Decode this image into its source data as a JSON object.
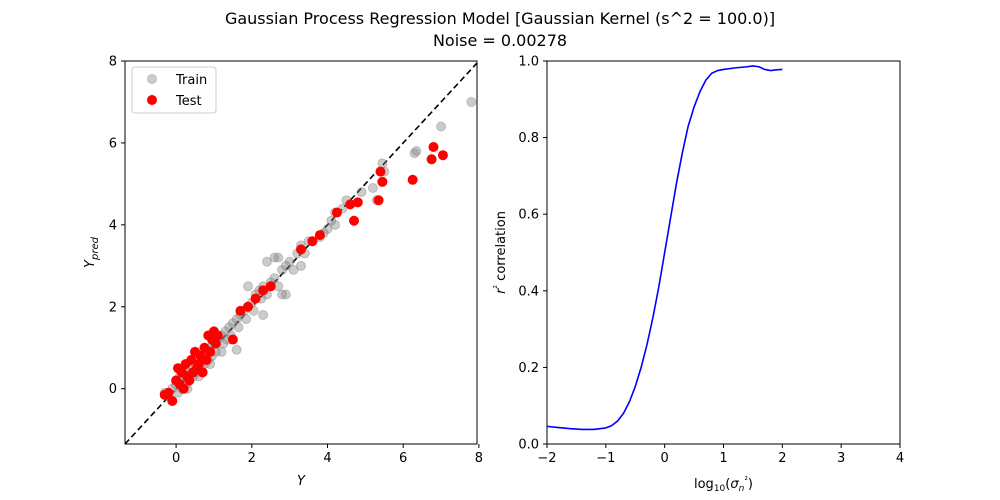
{
  "figure": {
    "title_line1": "Gaussian Process Regression Model [Gaussian Kernel (s^2 = 100.0)]",
    "title_line2": "Noise = 0.00278"
  },
  "chart_data": [
    {
      "type": "scatter",
      "xlabel": "Y",
      "ylabel": "Y_pred",
      "xlim": [
        -1.35,
        7.95
      ],
      "ylim": [
        -1.35,
        8.0
      ],
      "xticks": [
        "0",
        "2",
        "4",
        "6",
        "8"
      ],
      "yticks": [
        "0",
        "2",
        "4",
        "6",
        "8"
      ],
      "legend": {
        "position": "top-left",
        "entries": [
          "Train",
          "Test"
        ]
      },
      "reference_line": {
        "style": "dashed",
        "color": "#000000",
        "from": [
          -1.35,
          -1.35
        ],
        "to": [
          8.0,
          8.0
        ]
      },
      "series": [
        {
          "name": "Train",
          "color": "#808080",
          "opacity": 0.4,
          "points": [
            [
              -0.3,
              -0.1
            ],
            [
              -0.2,
              -0.2
            ],
            [
              -0.1,
              0.0
            ],
            [
              0.0,
              0.1
            ],
            [
              0.05,
              -0.1
            ],
            [
              0.1,
              0.2
            ],
            [
              0.15,
              0.0
            ],
            [
              0.2,
              0.3
            ],
            [
              0.25,
              0.1
            ],
            [
              0.3,
              0.4
            ],
            [
              0.35,
              0.2
            ],
            [
              0.4,
              0.5
            ],
            [
              0.45,
              0.3
            ],
            [
              0.5,
              0.6
            ],
            [
              0.55,
              0.4
            ],
            [
              0.6,
              0.7
            ],
            [
              0.65,
              0.5
            ],
            [
              0.7,
              0.8
            ],
            [
              0.75,
              0.6
            ],
            [
              0.8,
              0.9
            ],
            [
              0.85,
              0.7
            ],
            [
              0.9,
              1.0
            ],
            [
              0.95,
              0.8
            ],
            [
              1.0,
              1.1
            ],
            [
              1.05,
              0.9
            ],
            [
              1.1,
              1.2
            ],
            [
              1.2,
              1.3
            ],
            [
              1.25,
              1.1
            ],
            [
              1.3,
              1.4
            ],
            [
              1.35,
              1.2
            ],
            [
              1.4,
              1.5
            ],
            [
              1.45,
              1.3
            ],
            [
              1.5,
              1.6
            ],
            [
              1.6,
              1.7
            ],
            [
              1.65,
              1.5
            ],
            [
              1.7,
              1.8
            ],
            [
              1.8,
              1.9
            ],
            [
              1.85,
              1.7
            ],
            [
              1.9,
              2.0
            ],
            [
              2.0,
              2.1
            ],
            [
              2.05,
              1.9
            ],
            [
              2.1,
              2.3
            ],
            [
              2.2,
              2.4
            ],
            [
              2.25,
              2.2
            ],
            [
              2.3,
              2.5
            ],
            [
              2.4,
              2.3
            ],
            [
              2.5,
              2.6
            ],
            [
              2.6,
              2.7
            ],
            [
              2.7,
              2.5
            ],
            [
              2.8,
              2.9
            ],
            [
              2.9,
              3.0
            ],
            [
              3.0,
              3.1
            ],
            [
              3.1,
              2.9
            ],
            [
              3.2,
              3.3
            ],
            [
              3.3,
              3.5
            ],
            [
              3.4,
              3.3
            ],
            [
              3.6,
              3.6
            ],
            [
              3.8,
              3.7
            ],
            [
              4.0,
              3.9
            ],
            [
              4.2,
              4.3
            ],
            [
              4.4,
              4.4
            ],
            [
              4.5,
              4.6
            ],
            [
              4.6,
              4.5
            ],
            [
              4.9,
              4.8
            ],
            [
              5.2,
              4.9
            ],
            [
              5.3,
              4.6
            ],
            [
              5.45,
              5.5
            ],
            [
              5.5,
              5.3
            ],
            [
              6.3,
              5.75
            ],
            [
              6.35,
              5.8
            ],
            [
              7.0,
              6.4
            ],
            [
              7.8,
              7.0
            ],
            [
              0.1,
              0.3
            ],
            [
              0.3,
              0.0
            ],
            [
              0.6,
              0.3
            ],
            [
              0.9,
              0.6
            ],
            [
              1.2,
              0.9
            ],
            [
              1.6,
              0.95
            ],
            [
              2.3,
              1.8
            ],
            [
              2.8,
              2.3
            ],
            [
              2.6,
              3.2
            ],
            [
              2.4,
              3.1
            ],
            [
              3.5,
              3.6
            ],
            [
              4.1,
              4.1
            ],
            [
              4.2,
              4.0
            ],
            [
              3.9,
              3.8
            ],
            [
              2.7,
              3.2
            ],
            [
              2.9,
              2.3
            ],
            [
              1.9,
              2.5
            ],
            [
              3.3,
              3.0
            ]
          ]
        },
        {
          "name": "Test",
          "color": "#ff0000",
          "opacity": 1.0,
          "points": [
            [
              -0.3,
              -0.15
            ],
            [
              -0.2,
              -0.1
            ],
            [
              -0.1,
              -0.3
            ],
            [
              0.0,
              0.2
            ],
            [
              0.05,
              0.5
            ],
            [
              0.1,
              0.1
            ],
            [
              0.15,
              0.4
            ],
            [
              0.2,
              0.0
            ],
            [
              0.25,
              0.6
            ],
            [
              0.3,
              0.3
            ],
            [
              0.35,
              0.2
            ],
            [
              0.4,
              0.7
            ],
            [
              0.45,
              0.4
            ],
            [
              0.5,
              0.9
            ],
            [
              0.55,
              0.5
            ],
            [
              0.6,
              0.6
            ],
            [
              0.65,
              0.8
            ],
            [
              0.7,
              0.4
            ],
            [
              0.75,
              1.0
            ],
            [
              0.8,
              0.7
            ],
            [
              0.85,
              1.3
            ],
            [
              0.9,
              0.9
            ],
            [
              0.95,
              1.2
            ],
            [
              1.0,
              1.4
            ],
            [
              1.05,
              1.1
            ],
            [
              1.1,
              1.3
            ],
            [
              1.5,
              1.2
            ],
            [
              1.7,
              1.9
            ],
            [
              1.9,
              2.0
            ],
            [
              2.1,
              2.2
            ],
            [
              2.3,
              2.4
            ],
            [
              2.5,
              2.5
            ],
            [
              3.3,
              3.4
            ],
            [
              3.6,
              3.6
            ],
            [
              3.8,
              3.75
            ],
            [
              4.25,
              4.3
            ],
            [
              4.6,
              4.5
            ],
            [
              4.7,
              4.1
            ],
            [
              4.8,
              4.55
            ],
            [
              5.35,
              4.6
            ],
            [
              5.4,
              5.3
            ],
            [
              5.45,
              5.05
            ],
            [
              6.25,
              5.1
            ],
            [
              6.75,
              5.6
            ],
            [
              6.8,
              5.9
            ],
            [
              7.05,
              5.7
            ]
          ]
        }
      ]
    },
    {
      "type": "line",
      "xlabel": "log10(σn²)",
      "ylabel": "r² correlation",
      "xlim": [
        -2,
        4
      ],
      "ylim": [
        0.0,
        1.0
      ],
      "xticks": [
        "−2",
        "−1",
        "0",
        "1",
        "2",
        "3",
        "4"
      ],
      "yticks": [
        "0.0",
        "0.2",
        "0.4",
        "0.6",
        "0.8",
        "1.0"
      ],
      "series": [
        {
          "name": "",
          "color": "#0000ff",
          "x": [
            -2.0,
            -1.8,
            -1.6,
            -1.4,
            -1.2,
            -1.0,
            -0.9,
            -0.8,
            -0.7,
            -0.6,
            -0.5,
            -0.4,
            -0.3,
            -0.2,
            -0.1,
            0.0,
            0.1,
            0.2,
            0.3,
            0.4,
            0.5,
            0.6,
            0.7,
            0.8,
            0.9,
            1.0,
            1.2,
            1.4,
            1.5,
            1.6,
            1.7,
            1.8,
            1.9,
            2.0
          ],
          "y": [
            0.046,
            0.043,
            0.04,
            0.038,
            0.038,
            0.042,
            0.048,
            0.06,
            0.08,
            0.11,
            0.15,
            0.2,
            0.26,
            0.33,
            0.41,
            0.5,
            0.59,
            0.68,
            0.76,
            0.83,
            0.88,
            0.92,
            0.95,
            0.968,
            0.975,
            0.978,
            0.982,
            0.985,
            0.987,
            0.985,
            0.978,
            0.975,
            0.977,
            0.978
          ]
        }
      ]
    }
  ]
}
